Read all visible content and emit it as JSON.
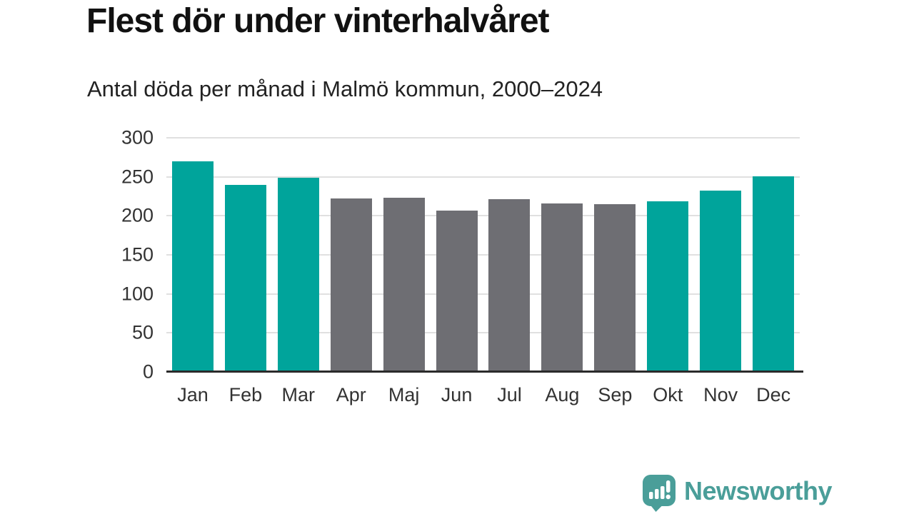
{
  "chart_data": {
    "type": "bar",
    "title": "Flest dör under vinterhalvåret",
    "subtitle": "Antal döda per månad i Malmö kommun, 2000–2024",
    "categories": [
      "Jan",
      "Feb",
      "Mar",
      "Apr",
      "Maj",
      "Jun",
      "Jul",
      "Aug",
      "Sep",
      "Okt",
      "Nov",
      "Dec"
    ],
    "values": [
      270,
      240,
      249,
      222,
      223,
      207,
      221,
      216,
      215,
      219,
      232,
      251
    ],
    "bar_colors": [
      "teal",
      "teal",
      "teal",
      "gray",
      "gray",
      "gray",
      "gray",
      "gray",
      "gray",
      "teal",
      "teal",
      "teal"
    ],
    "palette": {
      "teal": "#00a49b",
      "gray": "#6e6e73"
    },
    "xlabel": "",
    "ylabel": "",
    "ylim": [
      0,
      300
    ],
    "yticks": [
      300,
      250,
      200,
      150,
      100,
      50,
      0
    ],
    "grid": true,
    "legend": false
  },
  "branding": {
    "logo_text": "Newsworthy",
    "logo_color": "#4a9e99",
    "logo_icon": "bar-chart-speech-bubble-icon"
  },
  "colors": {
    "background": "#ffffff",
    "title_text": "#111111",
    "subtitle_text": "#222222",
    "axis_text": "#333333",
    "gridline": "#e0e0e0",
    "axis_line": "#2b2b2b"
  }
}
